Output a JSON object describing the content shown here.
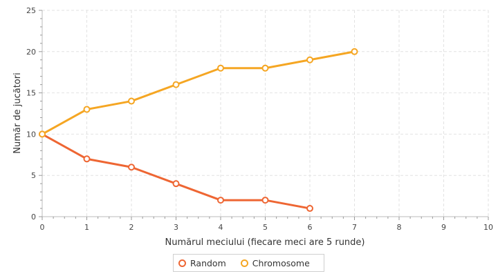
{
  "chart_data": {
    "type": "line",
    "title": "",
    "xlabel": "Numărul meciului (fiecare meci are 5 runde)",
    "ylabel": "Număr de jucători",
    "xlim": [
      0,
      10
    ],
    "ylim": [
      0,
      25
    ],
    "xticks": [
      "0",
      "1",
      "2",
      "3",
      "4",
      "5",
      "6",
      "7",
      "8",
      "9",
      "10"
    ],
    "yticks": [
      "0",
      "5",
      "10",
      "15",
      "20",
      "25"
    ],
    "grid": true,
    "legend_position": "bottom",
    "series": [
      {
        "name": "Random",
        "color": "#ee6633",
        "x": [
          0,
          1,
          2,
          3,
          4,
          5,
          6
        ],
        "y": [
          10,
          7,
          6,
          4,
          2,
          2,
          1
        ]
      },
      {
        "name": "Chromosome",
        "color": "#f5a623",
        "x": [
          0,
          1,
          2,
          3,
          4,
          5,
          6,
          7
        ],
        "y": [
          10,
          13,
          14,
          16,
          18,
          18,
          19,
          20
        ]
      }
    ]
  }
}
